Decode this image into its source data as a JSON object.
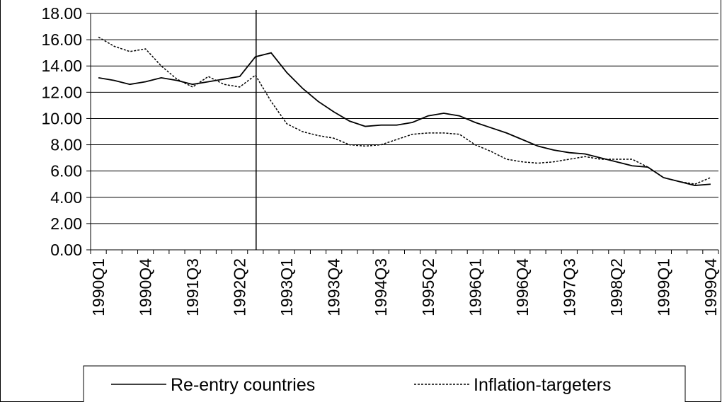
{
  "chart_data": {
    "type": "line",
    "categories": [
      "1990Q1",
      null,
      null,
      "1990Q4",
      null,
      null,
      "1991Q3",
      null,
      null,
      "1992Q2",
      null,
      null,
      "1993Q1",
      null,
      null,
      "1993Q4",
      null,
      null,
      "1994Q3",
      null,
      null,
      "1995Q2",
      null,
      null,
      "1996Q1",
      null,
      null,
      "1996Q4",
      null,
      null,
      "1997Q3",
      null,
      null,
      "1998Q2",
      null,
      null,
      "1999Q1",
      null,
      null,
      "1999Q4"
    ],
    "series": [
      {
        "name": "Re-entry countries",
        "color": "#000000",
        "dash": "solid",
        "values": [
          13.1,
          12.9,
          12.6,
          12.8,
          13.1,
          12.9,
          12.6,
          12.8,
          13.0,
          13.2,
          14.7,
          15.0,
          13.5,
          12.3,
          11.3,
          10.5,
          9.8,
          9.4,
          9.5,
          9.5,
          9.7,
          10.2,
          10.4,
          10.2,
          9.7,
          9.3,
          8.9,
          8.4,
          7.9,
          7.6,
          7.4,
          7.3,
          7.0,
          6.7,
          6.4,
          6.3,
          5.5,
          5.2,
          4.9,
          5.0
        ]
      },
      {
        "name": "Inflation-targeters",
        "color": "#000000",
        "dash": "dotted",
        "values": [
          16.2,
          15.5,
          15.1,
          15.3,
          14.0,
          13.0,
          12.4,
          13.2,
          12.6,
          12.4,
          13.3,
          11.3,
          9.6,
          9.0,
          8.7,
          8.5,
          8.0,
          7.9,
          8.0,
          8.4,
          8.8,
          8.9,
          8.9,
          8.8,
          8.0,
          7.5,
          6.9,
          6.7,
          6.6,
          6.7,
          6.9,
          7.1,
          6.9,
          6.9,
          6.9,
          6.3,
          5.5,
          5.2,
          5.0,
          5.5
        ]
      }
    ],
    "ylim": [
      0,
      18
    ],
    "yticks": [
      {
        "value": 0,
        "label": "0.00"
      },
      {
        "value": 2,
        "label": "2.00"
      },
      {
        "value": 4,
        "label": "4.00"
      },
      {
        "value": 6,
        "label": "6.00"
      },
      {
        "value": 8,
        "label": "8.00"
      },
      {
        "value": 10,
        "label": "10.00"
      },
      {
        "value": 12,
        "label": "12.00"
      },
      {
        "value": 14,
        "label": "14.00"
      },
      {
        "value": 16,
        "label": "16.00"
      },
      {
        "value": 18,
        "label": "18.00"
      }
    ],
    "grid": true,
    "vline_at": 10,
    "legend": "bottom"
  }
}
